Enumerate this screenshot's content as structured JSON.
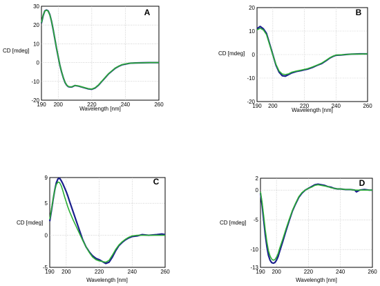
{
  "chart_data": [
    {
      "type": "line",
      "panel_label": "A",
      "xlabel": "Wavelength [nm]",
      "ylabel": "CD [mdeg]",
      "xlim": [
        190,
        260
      ],
      "ylim": [
        -20,
        30
      ],
      "xticks": [
        190,
        200,
        220,
        240,
        260
      ],
      "yticks": [
        30,
        20,
        10,
        0,
        -10,
        -20
      ],
      "grid": true,
      "series": [
        {
          "color": "#1a1f8c",
          "x": [
            190,
            191,
            192,
            193,
            194,
            195,
            196,
            197,
            198,
            199,
            200,
            201,
            202,
            203,
            204,
            205,
            206,
            207,
            208,
            210,
            212,
            214,
            216,
            218,
            220,
            222,
            224,
            226,
            228,
            230,
            232,
            234,
            236,
            238,
            240,
            243,
            246,
            250,
            255,
            260
          ],
          "y": [
            21,
            25,
            27.5,
            28,
            27.5,
            25.5,
            22,
            17.5,
            12.5,
            7.5,
            3,
            -1.5,
            -5,
            -8,
            -10.5,
            -12,
            -12.8,
            -13,
            -13,
            -12.2,
            -12.5,
            -13,
            -13.5,
            -14,
            -14.2,
            -13.5,
            -12,
            -10,
            -8,
            -6,
            -4.5,
            -3,
            -2,
            -1.2,
            -0.8,
            -0.3,
            -0.2,
            -0.1,
            0,
            0
          ]
        },
        {
          "color": "#2cae35",
          "x": [
            190,
            191,
            192,
            193,
            194,
            195,
            196,
            197,
            198,
            199,
            200,
            201,
            202,
            203,
            204,
            205,
            206,
            207,
            208,
            210,
            212,
            214,
            216,
            218,
            220,
            222,
            224,
            226,
            228,
            230,
            232,
            234,
            236,
            238,
            240,
            243,
            246,
            250,
            255,
            260
          ],
          "y": [
            21.2,
            25.2,
            27.4,
            27.9,
            27.4,
            25.4,
            22,
            17.6,
            12.6,
            7.6,
            3.1,
            -1.4,
            -4.9,
            -7.9,
            -10.4,
            -11.9,
            -12.7,
            -12.9,
            -12.9,
            -12.2,
            -12.4,
            -12.9,
            -13.4,
            -13.9,
            -14.1,
            -13.4,
            -11.9,
            -9.9,
            -7.9,
            -5.9,
            -4.4,
            -2.9,
            -1.9,
            -1.1,
            -0.7,
            -0.3,
            -0.2,
            -0.1,
            0,
            0
          ]
        }
      ]
    },
    {
      "type": "line",
      "panel_label": "B",
      "xlabel": "Wavelength [nm]",
      "ylabel": "CD [mdeg]",
      "xlim": [
        190,
        260
      ],
      "ylim": [
        -20,
        20
      ],
      "xticks": [
        190,
        200,
        220,
        240,
        260
      ],
      "yticks": [
        20,
        10,
        0,
        -10,
        -20
      ],
      "grid": true,
      "series": [
        {
          "color": "#1a1f8c",
          "x": [
            190,
            192,
            194,
            196,
            198,
            200,
            202,
            204,
            206,
            208,
            210,
            212,
            215,
            218,
            220,
            222,
            225,
            228,
            231,
            234,
            236,
            238,
            240,
            243,
            246,
            250,
            255,
            260
          ],
          "y": [
            11,
            12,
            11,
            9,
            4.5,
            0,
            -4.5,
            -7.5,
            -9,
            -9.2,
            -8.5,
            -7.8,
            -7.2,
            -6.8,
            -6.5,
            -6.2,
            -5.5,
            -4.6,
            -3.8,
            -2.5,
            -1.5,
            -0.8,
            -0.3,
            -0.2,
            0,
            0.2,
            0.3,
            0.3
          ]
        },
        {
          "color": "#2cae35",
          "x": [
            190,
            192,
            194,
            196,
            198,
            200,
            202,
            204,
            206,
            208,
            210,
            212,
            215,
            218,
            220,
            222,
            225,
            228,
            231,
            234,
            236,
            238,
            240,
            243,
            246,
            250,
            255,
            260
          ],
          "y": [
            10.5,
            11.2,
            10.5,
            8.5,
            4.2,
            -0.2,
            -4.2,
            -7,
            -8.3,
            -8.5,
            -8.2,
            -7.5,
            -7,
            -6.6,
            -6.3,
            -6,
            -5.3,
            -4.5,
            -3.6,
            -2.3,
            -1.4,
            -0.7,
            -0.2,
            -0.1,
            0,
            0.2,
            0.2,
            0.3
          ]
        }
      ]
    },
    {
      "type": "line",
      "panel_label": "C",
      "xlabel": "Wavelength [nm]",
      "ylabel": "CD [mdeg]",
      "xlim": [
        190,
        260
      ],
      "ylim": [
        -5,
        9
      ],
      "xticks": [
        190,
        200,
        220,
        240,
        260
      ],
      "yticks": [
        9,
        5,
        0,
        -5
      ],
      "grid": true,
      "series": [
        {
          "color": "#1a1f8c",
          "x": [
            190,
            191,
            192,
            193,
            194,
            195,
            196,
            197,
            198,
            199,
            200,
            201,
            202,
            204,
            206,
            208,
            210,
            212,
            214,
            216,
            218,
            220,
            222,
            224,
            226,
            228,
            230,
            232,
            234,
            236,
            238,
            240,
            243,
            246,
            250,
            255,
            258,
            260
          ],
          "y": [
            2.2,
            3.8,
            5.5,
            7,
            8.2,
            8.8,
            8.9,
            8.5,
            8,
            7.4,
            6.8,
            6.1,
            5.3,
            3.8,
            2.3,
            0.8,
            -0.7,
            -1.8,
            -2.6,
            -3.2,
            -3.6,
            -3.8,
            -4.1,
            -4.4,
            -4.2,
            -3.4,
            -2.4,
            -1.6,
            -1.1,
            -0.7,
            -0.4,
            -0.2,
            -0.1,
            0.1,
            0,
            0.1,
            0.2,
            0.1
          ]
        },
        {
          "color": "#2cae35",
          "x": [
            190,
            191,
            192,
            193,
            194,
            195,
            196,
            197,
            198,
            199,
            200,
            201,
            202,
            204,
            206,
            208,
            210,
            212,
            214,
            216,
            218,
            220,
            222,
            224,
            226,
            228,
            230,
            232,
            234,
            236,
            238,
            240,
            243,
            246,
            250,
            255,
            258,
            260
          ],
          "y": [
            2.5,
            4,
            5.6,
            7,
            7.9,
            8.3,
            8.2,
            7.7,
            6.9,
            6,
            5.2,
            4.4,
            3.7,
            2.5,
            1.4,
            0.3,
            -0.8,
            -1.8,
            -2.7,
            -3.4,
            -3.8,
            -4,
            -4.1,
            -4.2,
            -3.9,
            -3.1,
            -2.2,
            -1.5,
            -1,
            -0.6,
            -0.3,
            -0.1,
            0,
            0,
            0,
            0,
            0,
            0
          ]
        }
      ]
    },
    {
      "type": "line",
      "panel_label": "D",
      "xlabel": "Wavelength [nm]",
      "ylabel": "CD [mdeg]",
      "xlim": [
        190,
        260
      ],
      "ylim": [
        -13,
        2
      ],
      "xticks": [
        190,
        200,
        220,
        240,
        260
      ],
      "yticks": [
        2,
        0,
        -5,
        -10,
        -13
      ],
      "grid": true,
      "series": [
        {
          "color": "#1a1f8c",
          "x": [
            190,
            191,
            192,
            193,
            194,
            195,
            196,
            197,
            198,
            199,
            200,
            201,
            202,
            204,
            206,
            208,
            210,
            212,
            214,
            216,
            218,
            220,
            222,
            224,
            226,
            228,
            230,
            232,
            234,
            236,
            238,
            240,
            243,
            246,
            249,
            250,
            252,
            255,
            258,
            260
          ],
          "y": [
            -0.5,
            -2.5,
            -5,
            -7.5,
            -9.5,
            -11,
            -11.8,
            -12.2,
            -12.3,
            -12.2,
            -11.8,
            -11.2,
            -10.3,
            -8.6,
            -6.8,
            -5.1,
            -3.5,
            -2.3,
            -1.2,
            -0.5,
            0,
            0.3,
            0.6,
            0.9,
            1,
            0.9,
            0.8,
            0.6,
            0.5,
            0.3,
            0.2,
            0.2,
            0.1,
            0.1,
            0,
            -0.3,
            0,
            0.1,
            0,
            0
          ]
        },
        {
          "color": "#2cae35",
          "x": [
            190,
            191,
            192,
            193,
            194,
            195,
            196,
            197,
            198,
            199,
            200,
            201,
            202,
            204,
            206,
            208,
            210,
            212,
            214,
            216,
            218,
            220,
            222,
            224,
            226,
            228,
            230,
            232,
            234,
            236,
            238,
            240,
            243,
            246,
            249,
            250,
            252,
            255,
            258,
            260
          ],
          "y": [
            -0.3,
            -2,
            -4.3,
            -6.7,
            -8.7,
            -10.2,
            -11.1,
            -11.6,
            -11.8,
            -11.7,
            -11.3,
            -10.7,
            -9.8,
            -8.2,
            -6.5,
            -4.9,
            -3.4,
            -2.2,
            -1.1,
            -0.4,
            0,
            0.3,
            0.5,
            0.8,
            0.9,
            0.8,
            0.7,
            0.6,
            0.4,
            0.3,
            0.2,
            0.2,
            0.1,
            0.1,
            0,
            0,
            0,
            0,
            0,
            0
          ]
        }
      ]
    }
  ]
}
